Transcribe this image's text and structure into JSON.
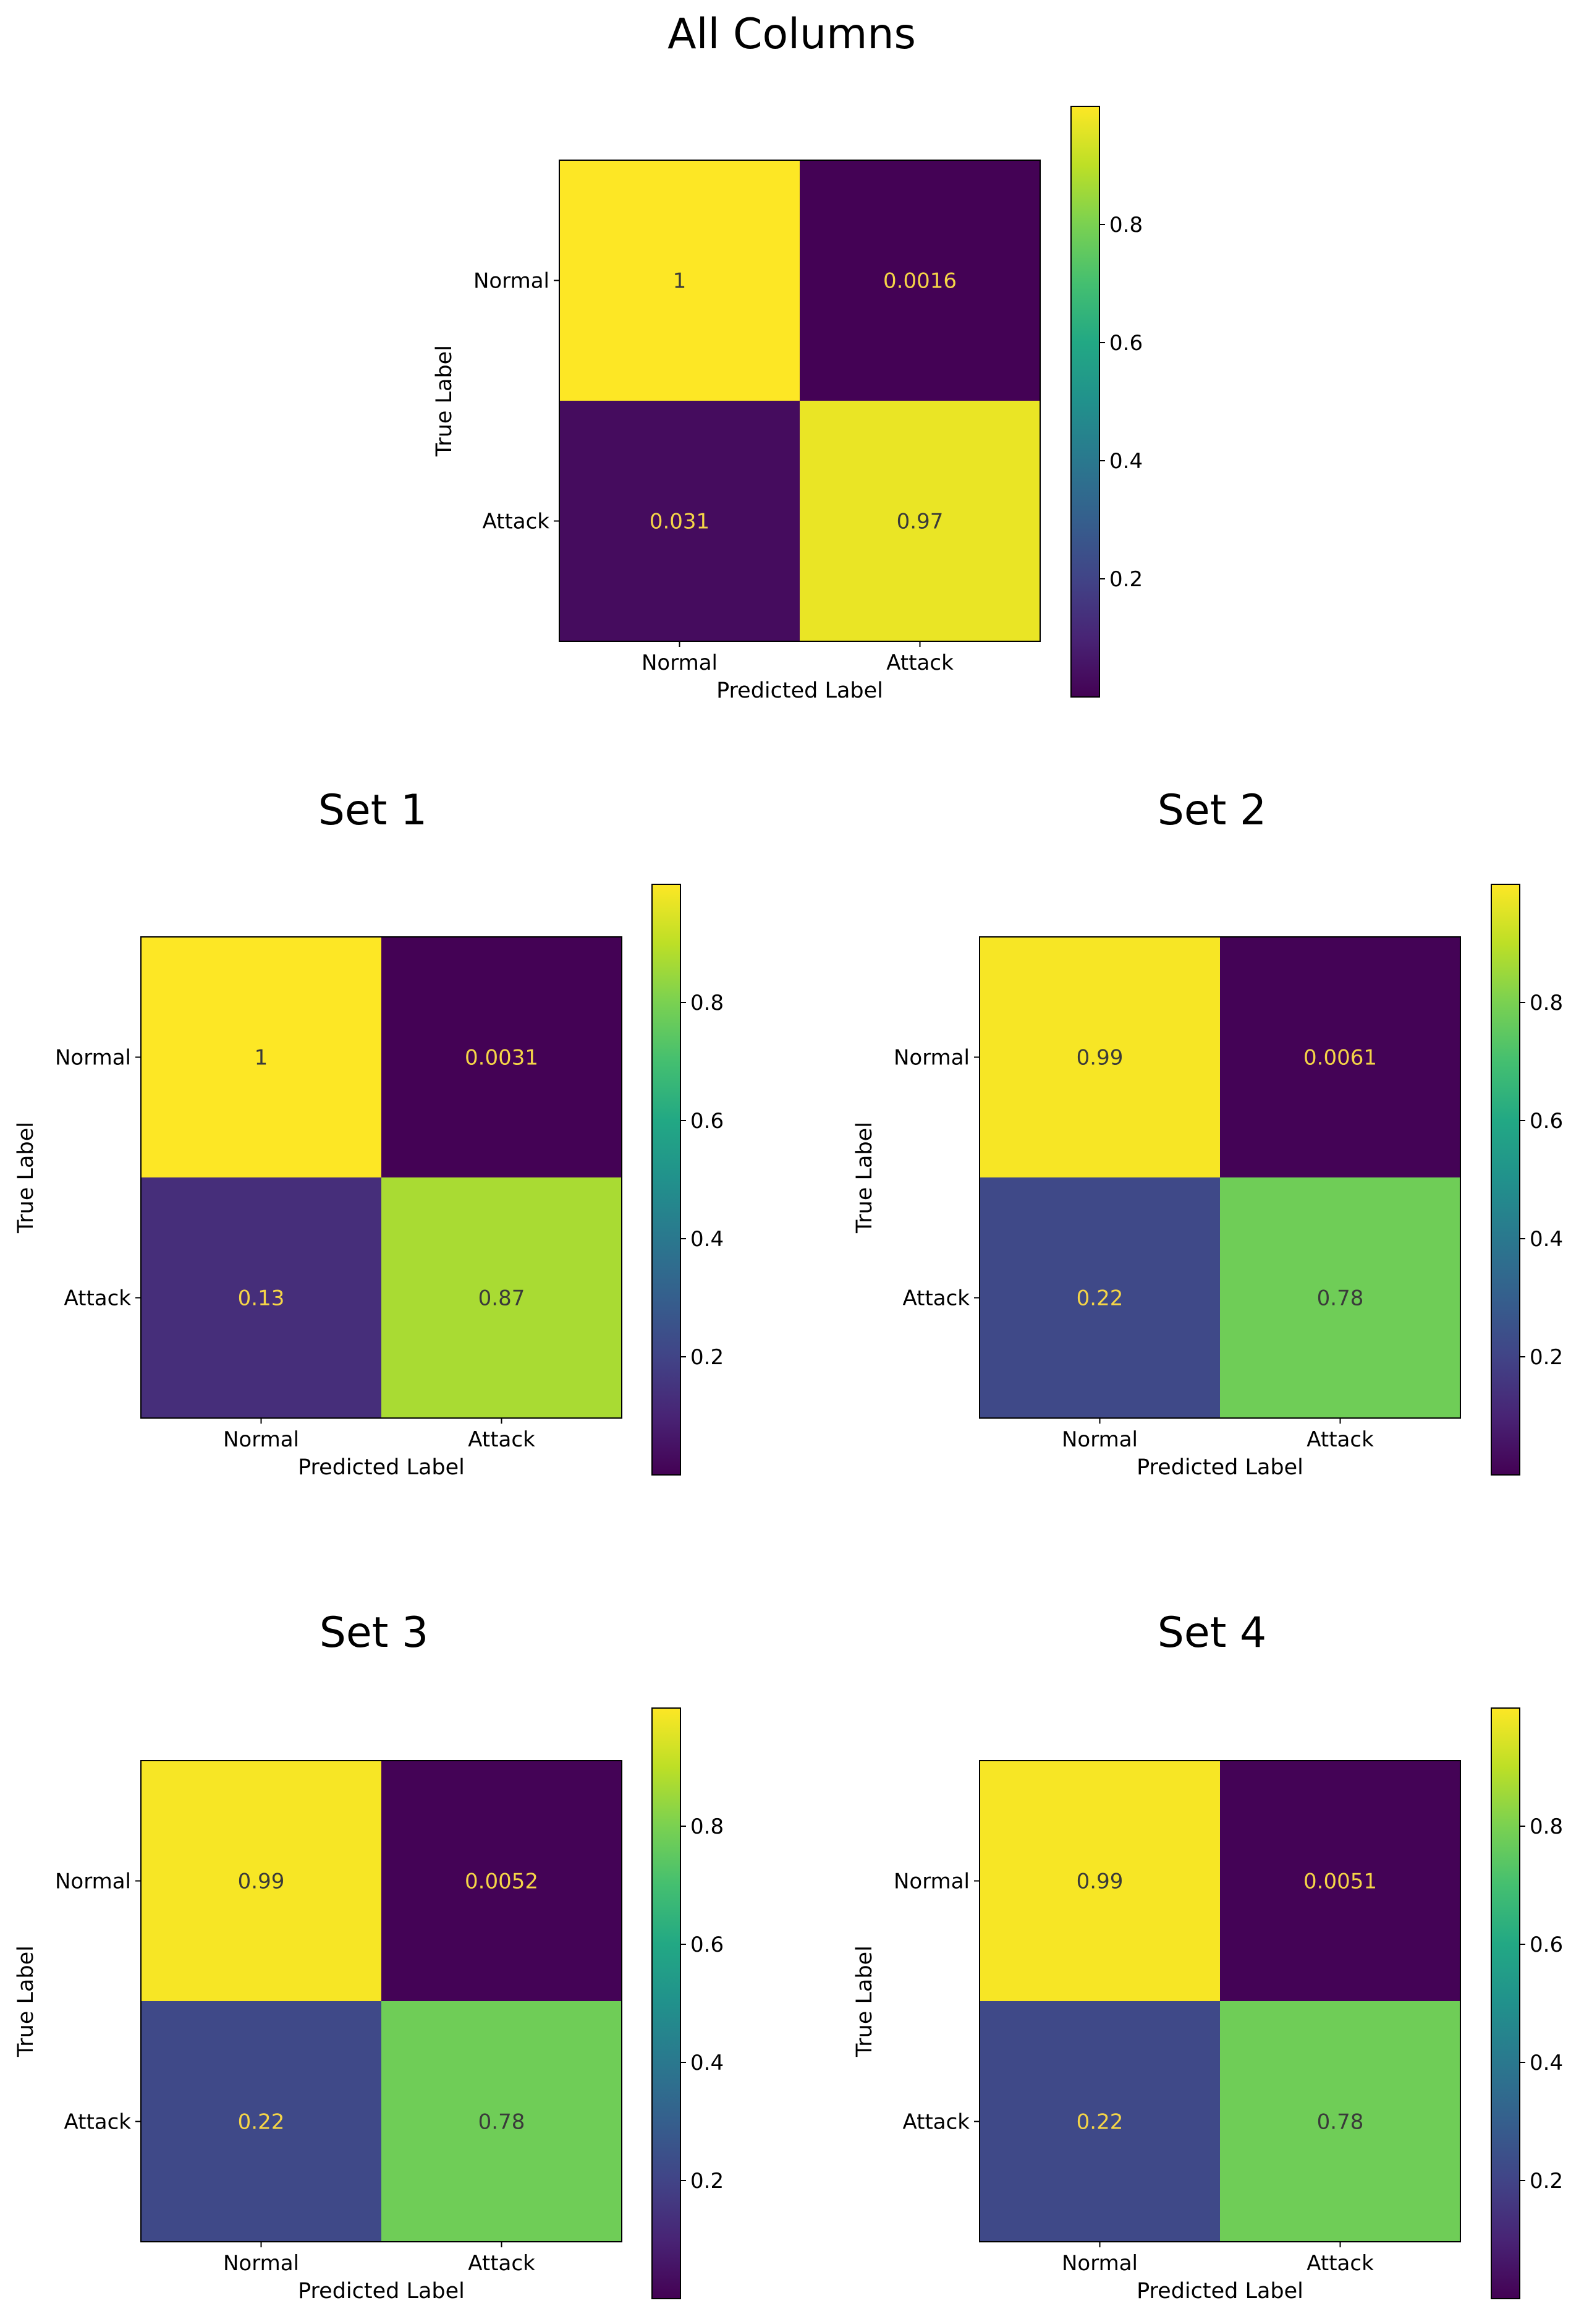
{
  "chart_data": [
    {
      "type": "heatmap",
      "title": "All Columns",
      "xlabel": "Predicted Label",
      "ylabel": "True Label",
      "categories": [
        "Normal",
        "Attack"
      ],
      "matrix": [
        [
          1,
          0.0016
        ],
        [
          0.031,
          0.97
        ]
      ],
      "labels": [
        [
          "1",
          "0.0016"
        ],
        [
          "0.031",
          "0.97"
        ]
      ],
      "colorbar": {
        "colormap": "viridis",
        "range": [
          0,
          1
        ],
        "ticks": [
          0.2,
          0.4,
          0.6,
          0.8
        ],
        "tick_labels": [
          "0.2",
          "0.4",
          "0.6",
          "0.8"
        ]
      }
    },
    {
      "type": "heatmap",
      "title": "Set 1",
      "xlabel": "Predicted Label",
      "ylabel": "True Label",
      "categories": [
        "Normal",
        "Attack"
      ],
      "matrix": [
        [
          1,
          0.0031
        ],
        [
          0.13,
          0.87
        ]
      ],
      "labels": [
        [
          "1",
          "0.0031"
        ],
        [
          "0.13",
          "0.87"
        ]
      ],
      "colorbar": {
        "colormap": "viridis",
        "range": [
          0,
          1
        ],
        "ticks": [
          0.2,
          0.4,
          0.6,
          0.8
        ],
        "tick_labels": [
          "0.2",
          "0.4",
          "0.6",
          "0.8"
        ]
      }
    },
    {
      "type": "heatmap",
      "title": "Set 2",
      "xlabel": "Predicted Label",
      "ylabel": "True Label",
      "categories": [
        "Normal",
        "Attack"
      ],
      "matrix": [
        [
          0.99,
          0.0061
        ],
        [
          0.22,
          0.78
        ]
      ],
      "labels": [
        [
          "0.99",
          "0.0061"
        ],
        [
          "0.22",
          "0.78"
        ]
      ],
      "colorbar": {
        "colormap": "viridis",
        "range": [
          0,
          1
        ],
        "ticks": [
          0.2,
          0.4,
          0.6,
          0.8
        ],
        "tick_labels": [
          "0.2",
          "0.4",
          "0.6",
          "0.8"
        ]
      }
    },
    {
      "type": "heatmap",
      "title": "Set 3",
      "xlabel": "Predicted Label",
      "ylabel": "True Label",
      "categories": [
        "Normal",
        "Attack"
      ],
      "matrix": [
        [
          0.99,
          0.0052
        ],
        [
          0.22,
          0.78
        ]
      ],
      "labels": [
        [
          "0.99",
          "0.0052"
        ],
        [
          "0.22",
          "0.78"
        ]
      ],
      "colorbar": {
        "colormap": "viridis",
        "range": [
          0,
          1
        ],
        "ticks": [
          0.2,
          0.4,
          0.6,
          0.8
        ],
        "tick_labels": [
          "0.2",
          "0.4",
          "0.6",
          "0.8"
        ]
      }
    },
    {
      "type": "heatmap",
      "title": "Set 4",
      "xlabel": "Predicted Label",
      "ylabel": "True Label",
      "categories": [
        "Normal",
        "Attack"
      ],
      "matrix": [
        [
          0.99,
          0.0051
        ],
        [
          0.22,
          0.78
        ]
      ],
      "labels": [
        [
          "0.99",
          "0.0051"
        ],
        [
          "0.22",
          "0.78"
        ]
      ],
      "colorbar": {
        "colormap": "viridis",
        "range": [
          0,
          1
        ],
        "ticks": [
          0.2,
          0.4,
          0.6,
          0.8
        ],
        "tick_labels": [
          "0.2",
          "0.4",
          "0.6",
          "0.8"
        ]
      }
    }
  ]
}
